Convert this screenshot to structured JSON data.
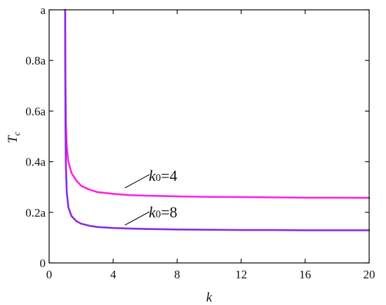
{
  "chart_data": {
    "type": "line",
    "xlabel": "k",
    "ylabel_main": "T",
    "ylabel_sub": "c",
    "xlim": [
      0,
      20
    ],
    "ylim": [
      0,
      1
    ],
    "x_ticks": [
      {
        "value": 0,
        "label": "0"
      },
      {
        "value": 4,
        "label": "4"
      },
      {
        "value": 8,
        "label": "8"
      },
      {
        "value": 12,
        "label": "12"
      },
      {
        "value": 16,
        "label": "16"
      },
      {
        "value": 20,
        "label": "20"
      }
    ],
    "y_ticks": [
      {
        "value": 0,
        "label": "0"
      },
      {
        "value": 0.2,
        "label": "0.2a"
      },
      {
        "value": 0.4,
        "label": "0.4a"
      },
      {
        "value": 0.6,
        "label": "0.6a"
      },
      {
        "value": 0.8,
        "label": "0.8a"
      },
      {
        "value": 1.0,
        "label": "a"
      }
    ],
    "grid": false,
    "series": [
      {
        "color": "#ff22dd",
        "x": [
          1.0,
          1.01,
          1.02,
          1.05,
          1.1,
          1.2,
          1.4,
          1.7,
          2,
          2.5,
          3,
          4,
          5,
          6,
          8,
          10,
          12,
          14,
          16,
          18,
          20
        ],
        "y": [
          1.0,
          0.88,
          0.72,
          0.55,
          0.46,
          0.4,
          0.355,
          0.325,
          0.305,
          0.29,
          0.28,
          0.273,
          0.268,
          0.266,
          0.263,
          0.261,
          0.26,
          0.259,
          0.258,
          0.258,
          0.257
        ]
      },
      {
        "color": "#8a2be2",
        "x": [
          1.0,
          1.01,
          1.02,
          1.05,
          1.1,
          1.2,
          1.4,
          1.7,
          2,
          2.5,
          3,
          4,
          5,
          6,
          8,
          10,
          12,
          14,
          16,
          18,
          20
        ],
        "y": [
          1.0,
          0.75,
          0.55,
          0.38,
          0.28,
          0.22,
          0.185,
          0.165,
          0.155,
          0.147,
          0.142,
          0.138,
          0.136,
          0.134,
          0.132,
          0.131,
          0.13,
          0.13,
          0.129,
          0.129,
          0.129
        ]
      }
    ],
    "annotations": [
      {
        "main": "k",
        "sub": "0",
        "rest": "=4"
      },
      {
        "main": "k",
        "sub": "0",
        "rest": "=8"
      }
    ]
  }
}
